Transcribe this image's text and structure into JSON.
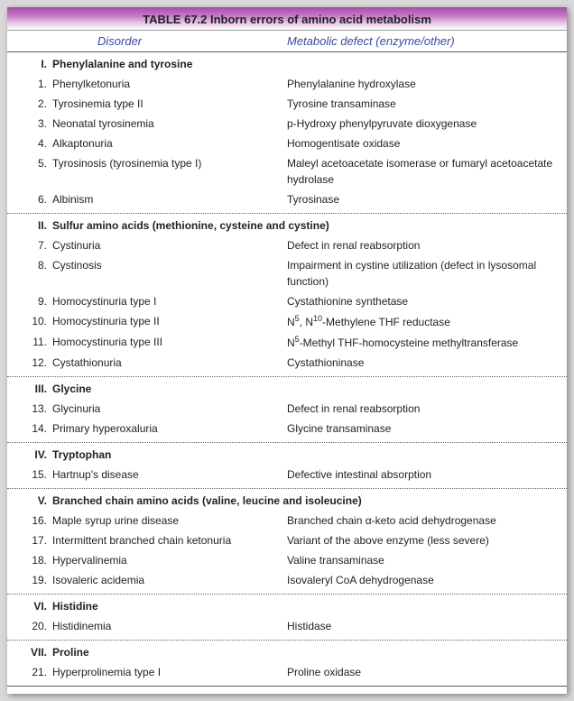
{
  "table_title": "TABLE 67.2 Inborn errors of amino acid metabolism",
  "columns": {
    "disorder": "Disorder",
    "defect": "Metabolic defect (enzyme/other)"
  },
  "sections": [
    {
      "roman": "I.",
      "title": "Phenylalanine and tyrosine",
      "rows": [
        {
          "n": "1.",
          "name": "Phenylketonuria",
          "defect": "Phenylalanine hydroxylase"
        },
        {
          "n": "2.",
          "name": "Tyrosinemia type II",
          "defect": "Tyrosine transaminase"
        },
        {
          "n": "3.",
          "name": "Neonatal tyrosinemia",
          "defect": "p-Hydroxy phenylpyruvate dioxygenase"
        },
        {
          "n": "4.",
          "name": "Alkaptonuria",
          "defect": "Homogentisate oxidase"
        },
        {
          "n": "5.",
          "name": "Tyrosinosis (tyrosinemia type I)",
          "defect": "Maleyl acetoacetate isomerase or fumaryl acetoacetate hydrolase"
        },
        {
          "n": "6.",
          "name": "Albinism",
          "defect": "Tyrosinase"
        }
      ]
    },
    {
      "roman": "II.",
      "title": "Sulfur amino acids (methionine, cysteine and cystine)",
      "rows": [
        {
          "n": "7.",
          "name": "Cystinuria",
          "defect": "Defect in renal reabsorption"
        },
        {
          "n": "8.",
          "name": "Cystinosis",
          "defect": "Impairment in cystine utilization (defect in lysosomal function)"
        },
        {
          "n": "9.",
          "name": "Homocystinuria type I",
          "defect": "Cystathionine synthetase"
        },
        {
          "n": "10.",
          "name": "Homocystinuria type II",
          "defect_html": "N<sup>5</sup>, N<sup>10</sup>-Methylene THF reductase"
        },
        {
          "n": "11.",
          "name": "Homocystinuria type III",
          "defect_html": "N<sup>5</sup>-Methyl THF-homocysteine methyltransferase"
        },
        {
          "n": "12.",
          "name": "Cystathionuria",
          "defect": "Cystathioninase"
        }
      ]
    },
    {
      "roman": "III.",
      "title": "Glycine",
      "rows": [
        {
          "n": "13.",
          "name": "Glycinuria",
          "defect": "Defect in renal reabsorption"
        },
        {
          "n": "14.",
          "name": "Primary hyperoxaluria",
          "defect": "Glycine transaminase"
        }
      ]
    },
    {
      "roman": "IV.",
      "title": "Tryptophan",
      "rows": [
        {
          "n": "15.",
          "name": "Hartnup's disease",
          "defect": "Defective intestinal absorption"
        }
      ]
    },
    {
      "roman": "V.",
      "title": "Branched chain amino acids (valine, leucine and isoleucine)",
      "rows": [
        {
          "n": "16.",
          "name": "Maple syrup urine disease",
          "defect": "Branched chain α-keto acid dehydrogenase"
        },
        {
          "n": "17.",
          "name": "Intermittent branched chain ketonuria",
          "defect": "Variant of the above enzyme (less severe)"
        },
        {
          "n": "18.",
          "name": "Hypervalinemia",
          "defect": "Valine transaminase"
        },
        {
          "n": "19.",
          "name": "Isovaleric acidemia",
          "defect": "Isovaleryl CoA dehydrogenase"
        }
      ]
    },
    {
      "roman": "VI.",
      "title": "Histidine",
      "rows": [
        {
          "n": "20.",
          "name": "Histidinemia",
          "defect": "Histidase"
        }
      ]
    },
    {
      "roman": "VII.",
      "title": "Proline",
      "rows": [
        {
          "n": "21.",
          "name": "Hyperprolinemia type I",
          "defect": "Proline oxidase"
        }
      ]
    }
  ]
}
